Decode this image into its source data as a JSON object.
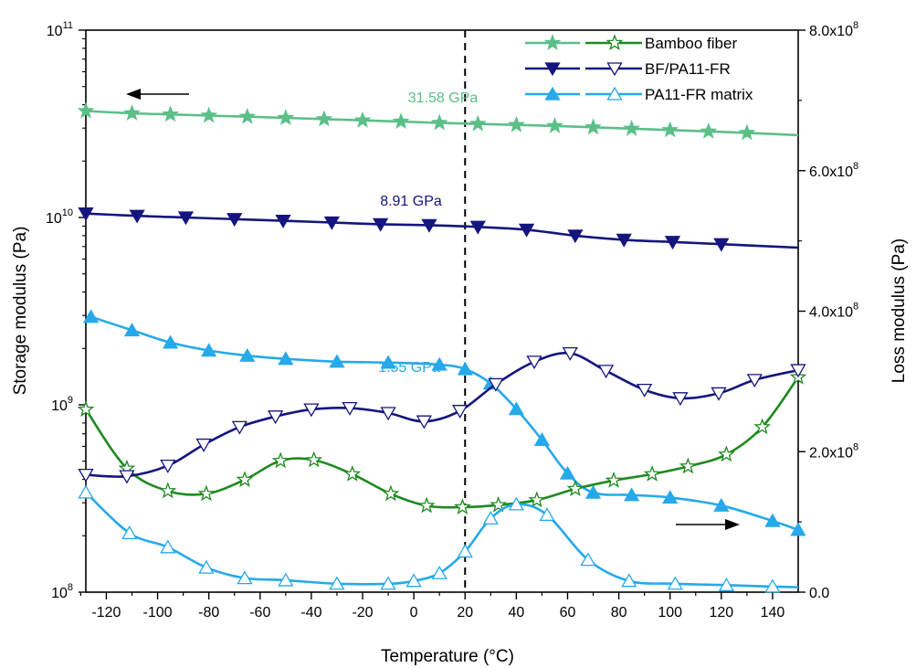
{
  "chart_data": {
    "type": "line",
    "xlabel": "Temperature (°C)",
    "ylabel_left": "Storage modulus (Pa)",
    "ylabel_right": "Loss modulus (Pa)",
    "xlim": [
      -128,
      150
    ],
    "ylim_left": [
      100000000,
      100000000000
    ],
    "yscale_left": "log",
    "ylim_right": [
      0,
      800000000
    ],
    "x_ticks": [
      -120,
      -100,
      -80,
      -60,
      -40,
      -20,
      0,
      20,
      40,
      60,
      80,
      100,
      120,
      140
    ],
    "x_tick_labels": [
      "-120",
      "-100",
      "-80",
      "-60",
      "-40",
      "-20",
      "0",
      "20",
      "40",
      "60",
      "80",
      "100",
      "120",
      "140"
    ],
    "left_ticks": [
      {
        "value": 100000000,
        "base": "10",
        "exp": "8"
      },
      {
        "value": 1000000000,
        "base": "10",
        "exp": "9"
      },
      {
        "value": 10000000000,
        "base": "10",
        "exp": "10"
      },
      {
        "value": 100000000000,
        "base": "10",
        "exp": "11"
      }
    ],
    "right_ticks": [
      {
        "value": 0,
        "label": "0.0",
        "exp": ""
      },
      {
        "value": 200000000,
        "label": "2.0x10",
        "exp": "8"
      },
      {
        "value": 400000000,
        "label": "4.0x10",
        "exp": "8"
      },
      {
        "value": 600000000,
        "label": "6.0x10",
        "exp": "8"
      },
      {
        "value": 800000000,
        "label": "8.0x10",
        "exp": "8"
      }
    ],
    "vertical_reference_x": 20,
    "grid": false,
    "legend_position": "top-right",
    "legend": [
      {
        "label": "Bamboo fiber",
        "storage_color": "#5bbf88",
        "loss_color": "#1e8a1e",
        "storage_marker": "star-filled",
        "loss_marker": "star-open"
      },
      {
        "label": "BF/PA11-FR",
        "storage_color": "#15157f",
        "loss_color": "#15157f",
        "storage_marker": "triangle-down-filled",
        "loss_marker": "triangle-down-open"
      },
      {
        "label": "PA11-FR matrix",
        "storage_color": "#25a9ea",
        "loss_color": "#25a9ea",
        "storage_marker": "triangle-up-filled",
        "loss_marker": "triangle-up-open"
      }
    ],
    "annotations": [
      {
        "text": "31.58 GPa",
        "color": "#5bbf88"
      },
      {
        "text": "8.91 GPa",
        "color": "#15157f"
      },
      {
        "text": "1.55 GPa",
        "color": "#25a9ea"
      }
    ],
    "series": [
      {
        "name": "Bamboo fiber",
        "kind": "storage",
        "axis": "left",
        "color": "#5bbf88",
        "marker": "star-filled",
        "x": [
          -128,
          -110,
          -95,
          -80,
          -65,
          -50,
          -35,
          -20,
          -5,
          10,
          25,
          40,
          55,
          70,
          85,
          100,
          115,
          130,
          150
        ],
        "y": [
          37000000000,
          36000000000,
          35500000000,
          35000000000,
          34500000000,
          34000000000,
          33500000000,
          33000000000,
          32500000000,
          32000000000,
          31600000000,
          31200000000,
          30800000000,
          30300000000,
          29800000000,
          29300000000,
          28800000000,
          28300000000,
          27500000000
        ]
      },
      {
        "name": "BF/PA11-FR",
        "kind": "storage",
        "axis": "left",
        "color": "#15157f",
        "marker": "triangle-down-filled",
        "x": [
          -128,
          -108,
          -89,
          -70,
          -51,
          -32,
          -13,
          6,
          25,
          44,
          63,
          82,
          101,
          120,
          150
        ],
        "y": [
          10500000000,
          10200000000,
          10000000000,
          9800000000,
          9600000000,
          9400000000,
          9200000000,
          9100000000,
          8910000000,
          8600000000,
          8000000000,
          7600000000,
          7400000000,
          7200000000,
          6900000000
        ]
      },
      {
        "name": "PA11-FR matrix",
        "kind": "storage",
        "axis": "left",
        "color": "#25a9ea",
        "marker": "triangle-up-filled",
        "x": [
          -126,
          -110,
          -95,
          -80,
          -65,
          -50,
          -30,
          -10,
          10,
          20,
          30,
          40,
          50,
          60,
          70,
          85,
          100,
          120,
          140,
          150
        ],
        "y": [
          2950000000,
          2500000000,
          2150000000,
          1950000000,
          1830000000,
          1760000000,
          1700000000,
          1680000000,
          1640000000,
          1550000000,
          1300000000,
          950000000,
          650000000,
          430000000,
          340000000,
          330000000,
          320000000,
          290000000,
          240000000,
          215000000
        ]
      },
      {
        "name": "Bamboo fiber",
        "kind": "loss",
        "axis": "right",
        "color": "#1e8a1e",
        "marker": "star-open",
        "x": [
          -128,
          -112,
          -96,
          -81,
          -66,
          -52,
          -39,
          -24,
          -9,
          5,
          19,
          33,
          48,
          63,
          78,
          93,
          107,
          122,
          136,
          150
        ],
        "y": [
          260000000,
          176000000,
          144000000,
          140000000,
          160000000,
          187000000,
          188000000,
          168000000,
          140000000,
          123000000,
          121000000,
          124000000,
          131000000,
          147000000,
          159000000,
          168000000,
          179000000,
          196000000,
          235000000,
          306000000
        ]
      },
      {
        "name": "BF/PA11-FR",
        "kind": "loss",
        "axis": "right",
        "color": "#15157f",
        "marker": "triangle-down-open",
        "x": [
          -128,
          -112,
          -96,
          -82,
          -68,
          -54,
          -40,
          -25,
          -10,
          4,
          18,
          32,
          47,
          61,
          75,
          90,
          104,
          119,
          133,
          150
        ],
        "y": [
          167000000,
          165000000,
          180000000,
          210000000,
          235000000,
          250000000,
          260000000,
          262000000,
          255000000,
          243000000,
          258000000,
          296000000,
          328000000,
          340000000,
          315000000,
          288000000,
          276000000,
          283000000,
          302000000,
          316000000
        ]
      },
      {
        "name": "PA11-FR matrix",
        "kind": "loss",
        "axis": "right",
        "color": "#25a9ea",
        "marker": "triangle-up-open",
        "x": [
          -128,
          -111,
          -96,
          -81,
          -66,
          -50,
          -30,
          -10,
          0,
          10,
          20,
          30,
          40,
          52,
          68,
          84,
          102,
          122,
          140,
          150
        ],
        "y": [
          142000000,
          84000000,
          64000000,
          35000000,
          20000000,
          17000000,
          12000000,
          12000000,
          16000000,
          27000000,
          58000000,
          105000000,
          125000000,
          110000000,
          46000000,
          16000000,
          12000000,
          10000000,
          8000000,
          7000000
        ]
      }
    ]
  }
}
